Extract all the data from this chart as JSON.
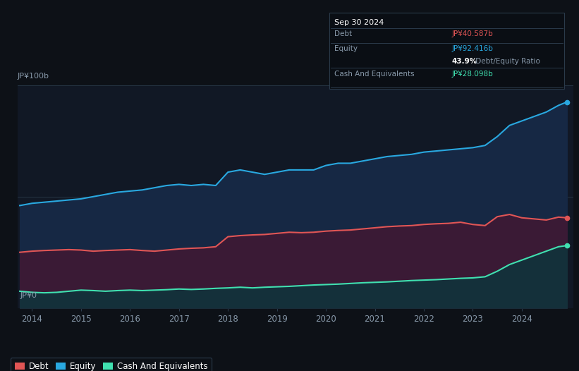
{
  "bg_color": "#0d1117",
  "plot_bg_color": "#111825",
  "ylabel_top": "JP¥100b",
  "ylabel_bottom": "JP¥0",
  "x_ticks": [
    2014,
    2015,
    2016,
    2017,
    2018,
    2019,
    2020,
    2021,
    2022,
    2023,
    2024
  ],
  "x_min": 2013.7,
  "x_max": 2025.05,
  "y_min": 0,
  "y_max": 100,
  "equity_color": "#29a8e0",
  "debt_color": "#e05555",
  "cash_color": "#40e0b0",
  "equity_fill": "#162844",
  "debt_fill": "#3a1a35",
  "cash_fill": "#14303a",
  "grid_color": "#2a3a4a",
  "tooltip_bg": "#0a0e14",
  "tooltip_border": "#2a3a4a",
  "legend_border": "#2a3a4a",
  "years": [
    2013.75,
    2014.0,
    2014.25,
    2014.5,
    2014.75,
    2015.0,
    2015.25,
    2015.5,
    2015.75,
    2016.0,
    2016.25,
    2016.5,
    2016.75,
    2017.0,
    2017.25,
    2017.5,
    2017.75,
    2018.0,
    2018.25,
    2018.5,
    2018.75,
    2019.0,
    2019.25,
    2019.5,
    2019.75,
    2020.0,
    2020.25,
    2020.5,
    2020.75,
    2021.0,
    2021.25,
    2021.5,
    2021.75,
    2022.0,
    2022.25,
    2022.5,
    2022.75,
    2023.0,
    2023.25,
    2023.5,
    2023.75,
    2024.0,
    2024.25,
    2024.5,
    2024.75,
    2024.92
  ],
  "equity": [
    46,
    47,
    47.5,
    48,
    48.5,
    49,
    50,
    51,
    52,
    52.5,
    53,
    54,
    55,
    55.5,
    55,
    55.5,
    55,
    61,
    62,
    61,
    60,
    61,
    62,
    62,
    62,
    64,
    65,
    65,
    66,
    67,
    68,
    68.5,
    69,
    70,
    70.5,
    71,
    71.5,
    72,
    73,
    77,
    82,
    84,
    86,
    88,
    91,
    92.5
  ],
  "debt": [
    25,
    25.5,
    25.8,
    26,
    26.2,
    26,
    25.5,
    25.8,
    26,
    26.2,
    25.8,
    25.5,
    26,
    26.5,
    26.8,
    27,
    27.5,
    32,
    32.5,
    32.8,
    33,
    33.5,
    34,
    33.8,
    34,
    34.5,
    34.8,
    35,
    35.5,
    36,
    36.5,
    36.8,
    37,
    37.5,
    37.8,
    38,
    38.5,
    37.5,
    37,
    41,
    42,
    40.5,
    40,
    39.5,
    40.8,
    40.5
  ],
  "cash": [
    7.5,
    7.0,
    6.8,
    7.0,
    7.5,
    8.0,
    7.8,
    7.5,
    7.8,
    8.0,
    7.8,
    8.0,
    8.2,
    8.5,
    8.3,
    8.5,
    8.8,
    9.0,
    9.3,
    9.0,
    9.3,
    9.5,
    9.7,
    10.0,
    10.3,
    10.5,
    10.7,
    11.0,
    11.3,
    11.5,
    11.7,
    12.0,
    12.3,
    12.5,
    12.7,
    13.0,
    13.3,
    13.5,
    14.0,
    16.5,
    19.5,
    21.5,
    23.5,
    25.5,
    27.5,
    28.0
  ],
  "info_box": {
    "title": "Sep 30 2024",
    "debt_label": "Debt",
    "debt_value": "JP¥40.587b",
    "equity_label": "Equity",
    "equity_value": "JP¥92.416b",
    "ratio_value": "43.9%",
    "ratio_label": " Debt/Equity Ratio",
    "cash_label": "Cash And Equivalents",
    "cash_value": "JP¥28.098b"
  },
  "legend": [
    {
      "label": "Debt",
      "color": "#e05555"
    },
    {
      "label": "Equity",
      "color": "#29a8e0"
    },
    {
      "label": "Cash And Equivalents",
      "color": "#40e0b0"
    }
  ]
}
